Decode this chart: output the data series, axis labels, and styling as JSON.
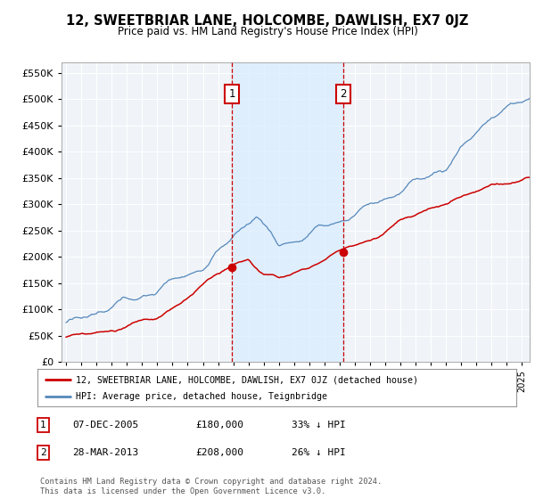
{
  "title": "12, SWEETBRIAR LANE, HOLCOMBE, DAWLISH, EX7 0JZ",
  "subtitle": "Price paid vs. HM Land Registry's House Price Index (HPI)",
  "legend_label_red": "12, SWEETBRIAR LANE, HOLCOMBE, DAWLISH, EX7 0JZ (detached house)",
  "legend_label_blue": "HPI: Average price, detached house, Teignbridge",
  "sale1_label": "1",
  "sale1_date": "07-DEC-2005",
  "sale1_price": "£180,000",
  "sale1_note": "33% ↓ HPI",
  "sale2_label": "2",
  "sale2_date": "28-MAR-2013",
  "sale2_price": "£208,000",
  "sale2_note": "26% ↓ HPI",
  "footnote": "Contains HM Land Registry data © Crown copyright and database right 2024.\nThis data is licensed under the Open Government Licence v3.0.",
  "background_color": "#ffffff",
  "plot_bg_color": "#f0f4f8",
  "grid_color": "#ffffff",
  "red_color": "#cc0000",
  "blue_color": "#5588bb",
  "shade_color": "#ddeeff",
  "sale1_x": 2005.92,
  "sale2_x": 2013.24,
  "sale1_price_val": 180000,
  "sale2_price_val": 208000,
  "ylim_min": 0,
  "ylim_max": 570000,
  "xlim_min": 1994.7,
  "xlim_max": 2025.5
}
